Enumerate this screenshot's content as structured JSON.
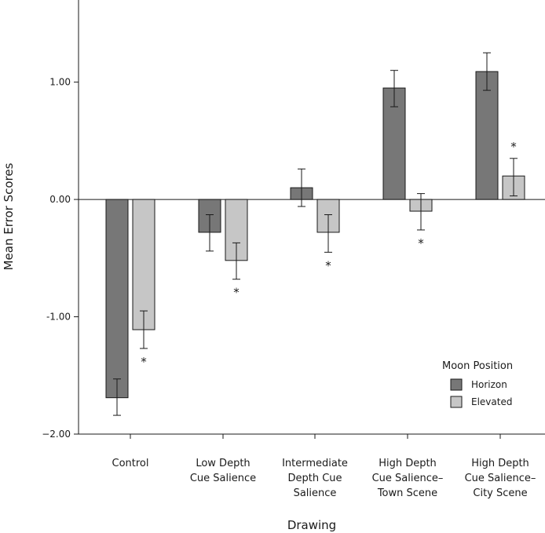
{
  "chart_data": {
    "type": "bar",
    "xlabel": "Drawing",
    "ylabel": "Mean Error Scores",
    "ylim": [
      -2.0,
      1.7
    ],
    "yticks": [
      -2.0,
      -1.0,
      0.0,
      1.0
    ],
    "ytick_labels": [
      "−2.00",
      "-1.00",
      "0.00",
      "1.00"
    ],
    "categories": [
      [
        "Control"
      ],
      [
        "Low Depth",
        "Cue Salience"
      ],
      [
        "Intermediate",
        "Depth Cue",
        "Salience"
      ],
      [
        "High Depth",
        "Cue Salience–",
        "Town Scene"
      ],
      [
        "High Depth",
        "Cue Salience–",
        "City Scene"
      ]
    ],
    "series": [
      {
        "name": "Horizon",
        "color": "#777777",
        "values": [
          -1.69,
          -0.28,
          0.1,
          0.95,
          1.09
        ],
        "err_low": [
          -1.84,
          -0.44,
          -0.06,
          0.79,
          0.93
        ],
        "err_high": [
          -1.53,
          -0.13,
          0.26,
          1.1,
          1.25
        ]
      },
      {
        "name": "Elevated",
        "color": "#c6c6c6",
        "values": [
          -1.11,
          -0.52,
          -0.28,
          -0.1,
          0.2
        ],
        "err_low": [
          -1.27,
          -0.68,
          -0.45,
          -0.26,
          0.03
        ],
        "err_high": [
          -0.95,
          -0.37,
          -0.13,
          0.05,
          0.35
        ]
      }
    ],
    "significance_marker": "*",
    "legend": {
      "title": "Moon Position",
      "placement": "bottom-right"
    },
    "grid": false
  }
}
